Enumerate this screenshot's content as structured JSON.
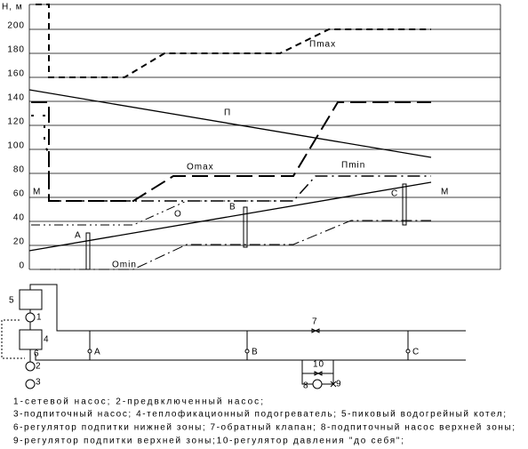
{
  "axis": {
    "title": "Н, м",
    "ticks": [
      0,
      20,
      40,
      60,
      80,
      100,
      120,
      140,
      160,
      180,
      200
    ]
  },
  "graph_labels": {
    "p_max": "Пmax",
    "p": "П",
    "o_max": "Оmax",
    "p_min": "Пmin",
    "m_left": "М",
    "m_right": "М",
    "o": "О",
    "a": "А",
    "b": "В",
    "c": "С",
    "o_min": "Оmin"
  },
  "scheme": {
    "n5": "5",
    "n1": "1",
    "n4": "4",
    "n6": "6",
    "n2": "2",
    "n3": "3",
    "n7": "7",
    "n10": "10",
    "n8": "8",
    "n9": "9",
    "a": "А",
    "b": "В",
    "c": "С"
  },
  "legend": [
    "1-сетевой насос; 2-предвключенный насос;",
    "3-подпиточный насос; 4-теплофикационный подогреватель; 5-пиковый водогрейный котел;",
    "6-регулятор подпитки нижней зоны; 7-обратный клапан; 8-подпиточный насос верхней зоны;",
    "9-регулятор подпитки верхней зоны;10-регулятор давления \"до себя\";"
  ]
}
